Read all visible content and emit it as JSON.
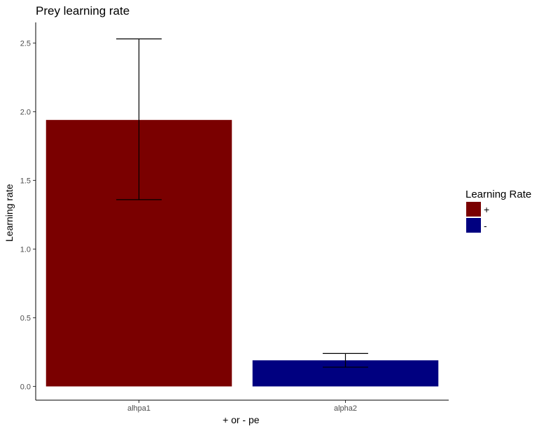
{
  "chart_data": {
    "type": "bar",
    "title": "Prey learning rate",
    "xlabel": "+ or - pe",
    "ylabel": "Learning rate",
    "categories": [
      "alhpa1",
      "alpha2"
    ],
    "values": [
      1.94,
      0.19
    ],
    "error_low": [
      1.36,
      0.14
    ],
    "error_high": [
      2.53,
      0.24
    ],
    "ylim": [
      -0.1,
      2.65
    ],
    "yticks": [
      0.0,
      0.5,
      1.0,
      1.5,
      2.0,
      2.5
    ],
    "ytick_labels": [
      "0.0",
      "0.5",
      "1.0",
      "1.5",
      "2.0",
      "2.5"
    ],
    "grid": false,
    "legend": {
      "title": "Learning Rate",
      "position": "right",
      "entries": [
        {
          "label": "+",
          "color": "#7a0000"
        },
        {
          "label": "-",
          "color": "#000080"
        }
      ]
    },
    "colors": [
      "#7a0000",
      "#000080"
    ]
  }
}
